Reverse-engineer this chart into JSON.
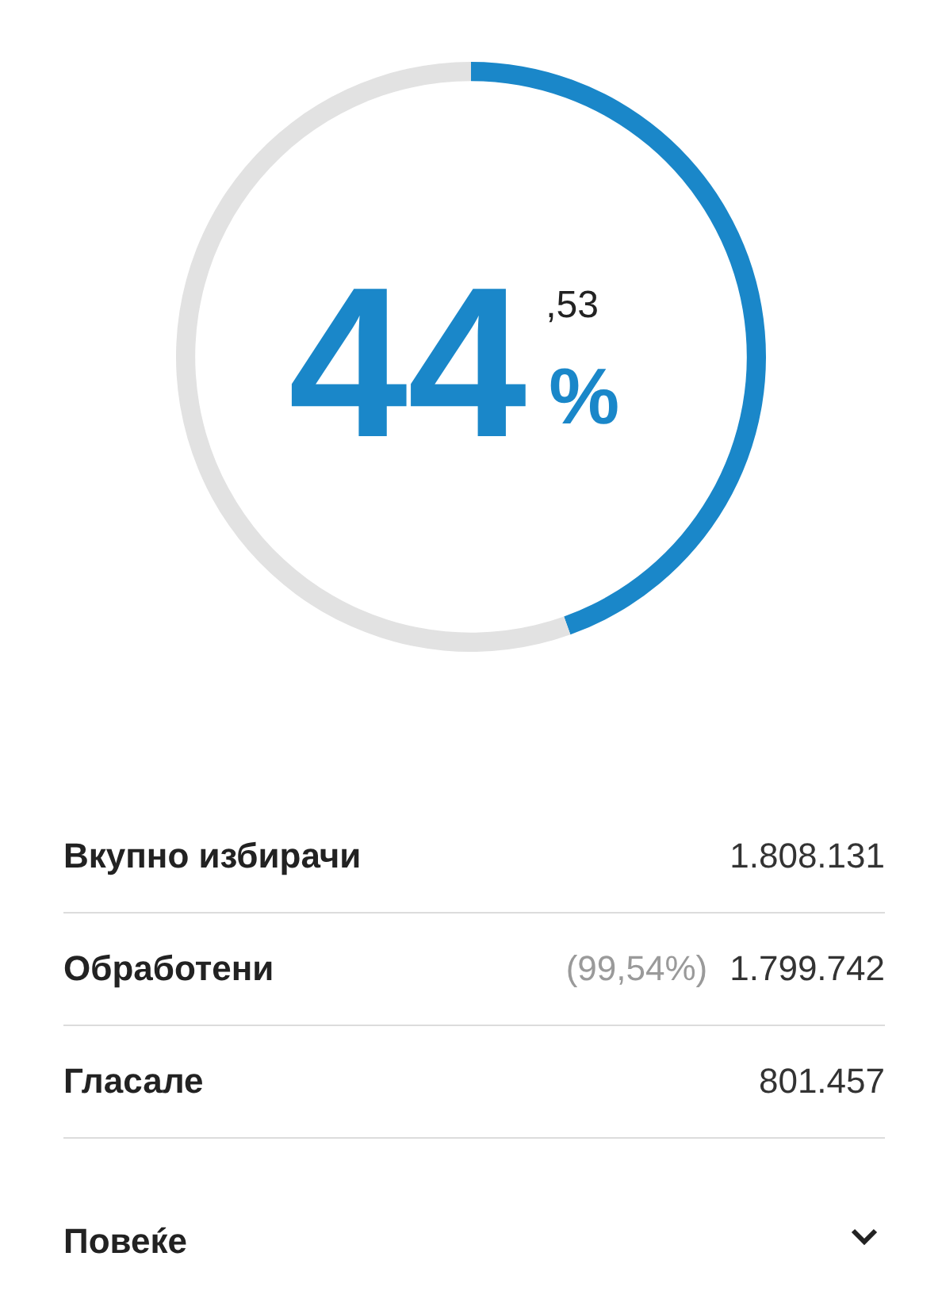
{
  "chart_data": [
    {
      "type": "donut",
      "categories": [
        null,
        null
      ],
      "values": [
        44.53,
        55.47
      ],
      "colors": [
        "#1a87c9",
        "#e2e2e2"
      ],
      "annotations": [
        "44,53%"
      ]
    },
    {
      "type": "other",
      "annotations": [
        "Вкупно избирачи",
        "1.808.131",
        "Обработени",
        "(99,54%)",
        "1.799.742",
        "Гласале",
        "801.457",
        "Повеќе"
      ]
    }
  ]
}
